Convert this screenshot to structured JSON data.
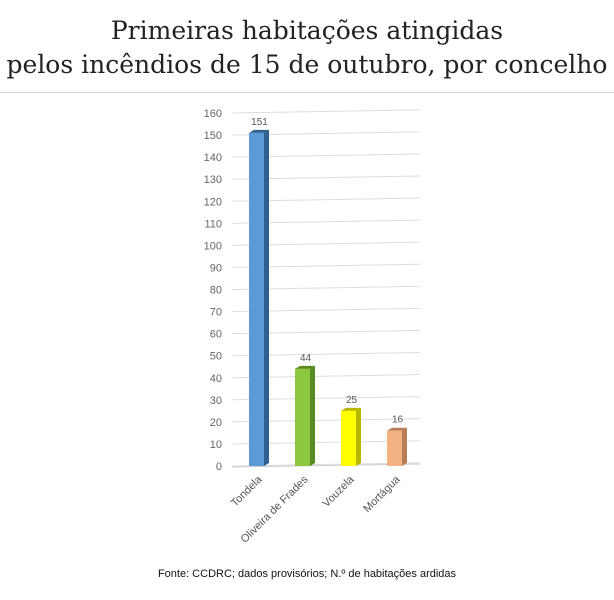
{
  "title": {
    "line1": "Primeiras habitações atingidas",
    "line2": "pelos incêndios de 15 de outubro, por concelho"
  },
  "source": "Fonte: CCDRC; dados provisórios; N.º de habitações ardidas",
  "chart_data": {
    "type": "bar",
    "categories": [
      "Tondela",
      "Oliveira de Frades",
      "Vouzela",
      "Mortágua"
    ],
    "values": [
      151,
      44,
      25,
      16
    ],
    "data_labels": [
      "151",
      "44",
      "25",
      "16"
    ],
    "yticks": [
      0,
      10,
      20,
      30,
      40,
      50,
      60,
      70,
      80,
      90,
      100,
      110,
      120,
      130,
      140,
      150,
      160
    ],
    "ylim": [
      0,
      160
    ],
    "grid": true,
    "colors": [
      "#5b9bd5",
      "#8dc63f",
      "#ffff00",
      "#f4b183"
    ],
    "side_colors": [
      "#2f5f8f",
      "#5a8a22",
      "#b8b800",
      "#b87d55"
    ]
  }
}
